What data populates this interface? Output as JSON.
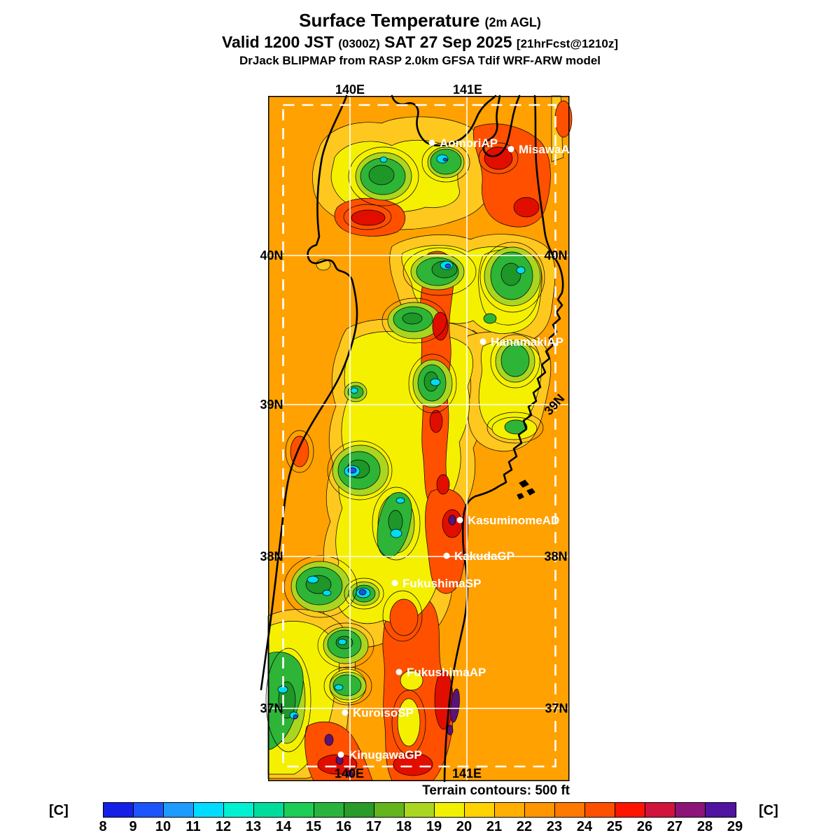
{
  "header": {
    "title_main": "Surface Temperature",
    "title_annot": "(2m AGL)",
    "valid_main_1": "Valid 1200 JST",
    "valid_zulu": "(0300Z)",
    "valid_main_2": "SAT 27 Sep 2025",
    "forecast_tag": "[21hrFcst@1210z]",
    "model_line": "DrJack BLIPMAP from RASP 2.0km GFSA Tdif WRF-ARW model"
  },
  "map": {
    "lon_top": [
      "140E",
      "141E"
    ],
    "lon_bottom": [
      "140E",
      "141E"
    ],
    "lat": [
      "40N",
      "39N",
      "38N",
      "37N"
    ],
    "stations": [
      {
        "label": "AomoriAP"
      },
      {
        "label": "MisawaAD"
      },
      {
        "label": "HanamakiAP"
      },
      {
        "label": "KasuminomeAD"
      },
      {
        "label": "KakudaGP"
      },
      {
        "label": "FukushimaSP"
      },
      {
        "label": "FukushimaAP"
      },
      {
        "label": "KuroisoSP"
      },
      {
        "label": "KinugawaGP"
      }
    ]
  },
  "footer": {
    "terrain_note": "Terrain contours: 500 ft",
    "units_left": "[C]",
    "units_right": "[C]"
  },
  "colorbar": {
    "tick_labels": [
      "8",
      "9",
      "10",
      "11",
      "12",
      "13",
      "14",
      "15",
      "16",
      "17",
      "18",
      "19",
      "20",
      "21",
      "22",
      "23",
      "24",
      "25",
      "26",
      "27",
      "28",
      "29"
    ],
    "colors": [
      "#1420E6",
      "#1E55FA",
      "#1E9BFF",
      "#00DCFF",
      "#00F0D2",
      "#00DC9B",
      "#1ECD55",
      "#28B43C",
      "#289B28",
      "#64B41E",
      "#AAD520",
      "#F0F000",
      "#FFD200",
      "#FFAF00",
      "#FF9600",
      "#FF7800",
      "#FF5000",
      "#FF1400",
      "#D2143C",
      "#8C1478",
      "#5014A0"
    ],
    "sea_color": "#FFA100",
    "accent_grid": "#FFFFFF"
  }
}
